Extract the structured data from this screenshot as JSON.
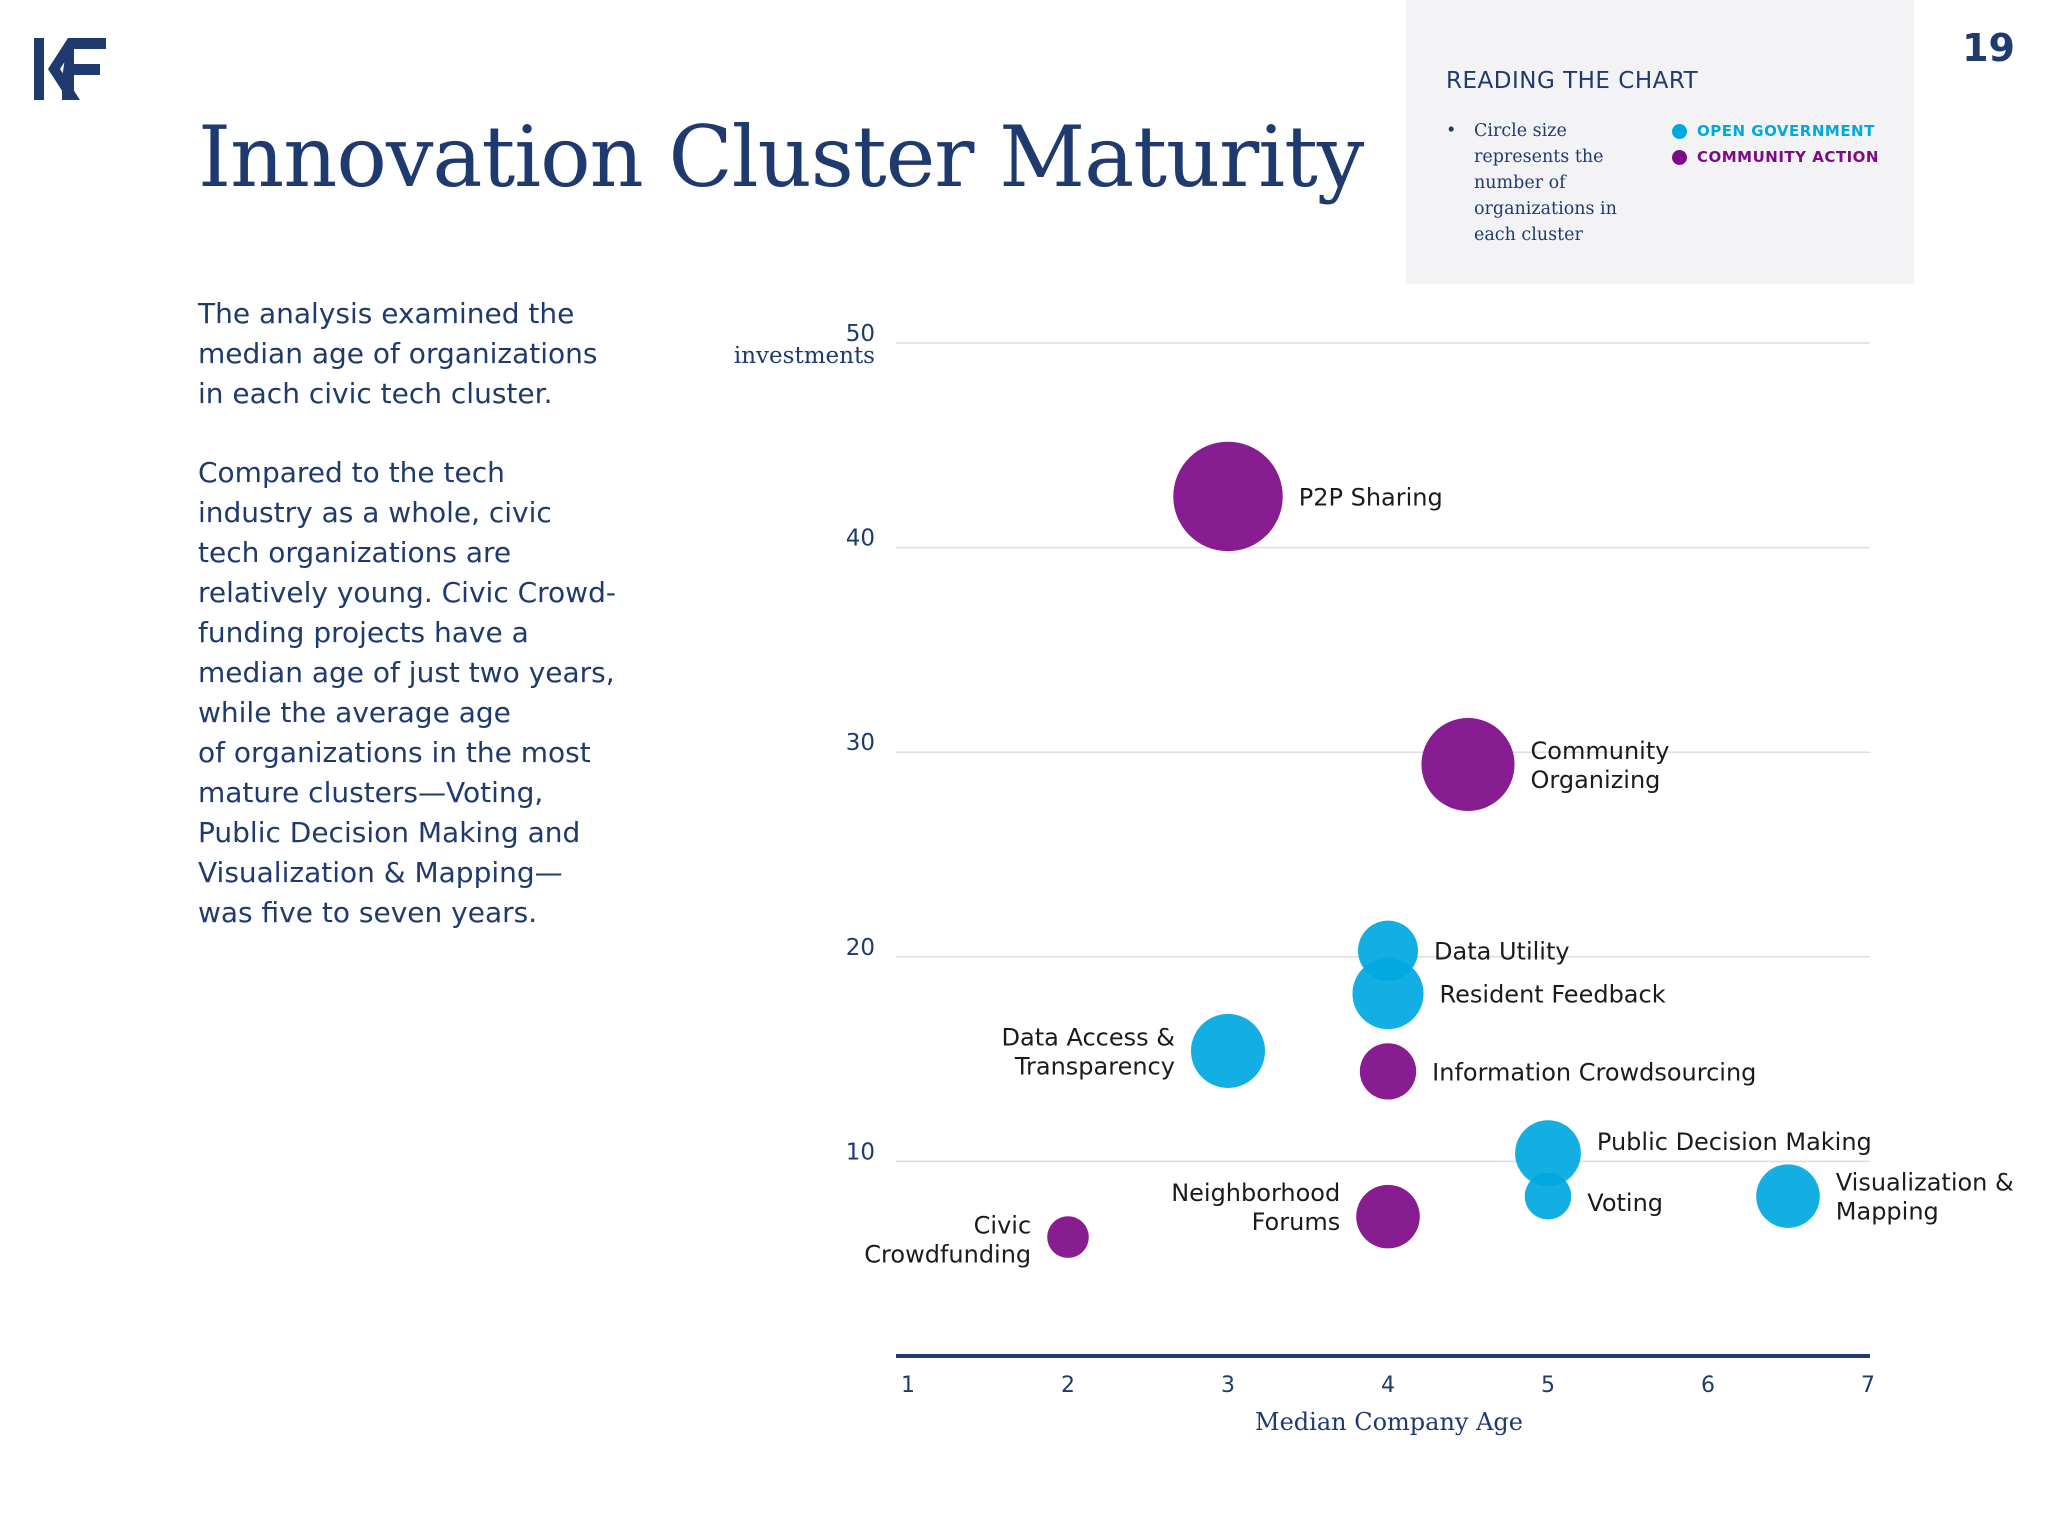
{
  "page_number": "19",
  "title": "Innovation Cluster Maturity",
  "body_paragraphs": [
    "The analysis examined the\nmedian age of organizations\nin each civic tech cluster.",
    "Compared to the tech\nindustry as a whole, civic\ntech organizations are\nrelatively young. Civic Crowd-\nfunding projects have a\nmedian age of just two years,\nwhile the average age\nof organizations in the most\nmature clusters—Voting,\nPublic Decision Making and\nVisualization & Mapping—\nwas five to seven years."
  ],
  "legend": {
    "heading": "READING THE CHART",
    "note": "Circle size represents the number of organizations in each cluster",
    "entries": [
      {
        "label": "OPEN GOVERNMENT",
        "color": "#00a8e0"
      },
      {
        "label": "COMMUNITY ACTION",
        "color": "#7d0a87"
      }
    ]
  },
  "chart_data": {
    "type": "scatter",
    "bubble": true,
    "title": "",
    "xlabel": "Median Company Age",
    "ylabel": "investments",
    "xlim": [
      1,
      7
    ],
    "ylim": [
      0,
      50
    ],
    "xticks": [
      1,
      2,
      3,
      4,
      5,
      6,
      7
    ],
    "yticks": [
      10,
      20,
      30,
      40,
      50
    ],
    "grid": true,
    "series": [
      {
        "name": "OPEN GOVERNMENT",
        "color": "#00a8e0",
        "points": [
          {
            "label": "Data Utility",
            "x": 4,
            "y": 20.3,
            "size": 2.5
          },
          {
            "label": "Resident Feedback",
            "x": 4,
            "y": 18.2,
            "size": 3.5
          },
          {
            "label": "Data Access & Transparency",
            "x": 3,
            "y": 15.4,
            "size": 3.8
          },
          {
            "label": "Public Decision Making",
            "x": 5,
            "y": 10.4,
            "size": 3.0
          },
          {
            "label": "Voting",
            "x": 5,
            "y": 8.3,
            "size": 1.5
          },
          {
            "label": "Visualization & Mapping",
            "x": 6.5,
            "y": 8.3,
            "size": 2.8
          }
        ]
      },
      {
        "name": "COMMUNITY ACTION",
        "color": "#7d0a87",
        "points": [
          {
            "label": "P2P Sharing",
            "x": 3,
            "y": 42.5,
            "size": 8.3
          },
          {
            "label": "Community Organizing",
            "x": 4.5,
            "y": 29.4,
            "size": 6.0
          },
          {
            "label": "Information Crowdsourcing",
            "x": 4,
            "y": 14.4,
            "size": 2.2
          },
          {
            "label": "Neighborhood Forums",
            "x": 4,
            "y": 7.3,
            "size": 2.8
          },
          {
            "label": "Civic Crowdfunding",
            "x": 2,
            "y": 6.3,
            "size": 1.2
          }
        ]
      }
    ]
  }
}
